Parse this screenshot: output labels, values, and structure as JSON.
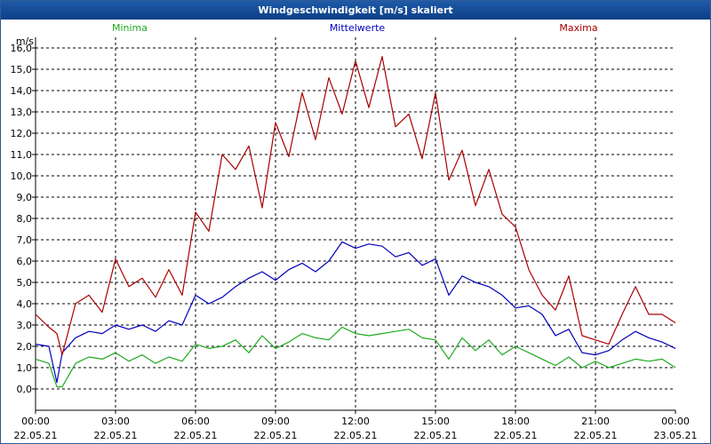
{
  "window": {
    "title": "Windgeschwindigkeit [m/s] skaliert"
  },
  "colors": {
    "minima": "#1faa1f",
    "mittelwerte": "#0000bb",
    "maxima": "#aa0000",
    "grid": "#000000",
    "axis": "#000000"
  },
  "chart_data": {
    "type": "line",
    "title": "Windgeschwindigkeit [m/s] skaliert",
    "ylabel": "m/s",
    "xlabel": "",
    "ylim": [
      -1.0,
      16.5
    ],
    "xlim": [
      0,
      24
    ],
    "grid": true,
    "y_ticks": [
      "0,0",
      "1,0",
      "2,0",
      "3,0",
      "4,0",
      "5,0",
      "6,0",
      "7,0",
      "8,0",
      "9,0",
      "10,0",
      "11,0",
      "12,0",
      "13,0",
      "14,0",
      "15,0",
      "16,0"
    ],
    "x_ticks": [
      {
        "time": "00:00",
        "date": "22.05.21",
        "hour": 0
      },
      {
        "time": "03:00",
        "date": "22.05.21",
        "hour": 3
      },
      {
        "time": "06:00",
        "date": "22.05.21",
        "hour": 6
      },
      {
        "time": "09:00",
        "date": "22.05.21",
        "hour": 9
      },
      {
        "time": "12:00",
        "date": "22.05.21",
        "hour": 12
      },
      {
        "time": "15:00",
        "date": "22.05.21",
        "hour": 15
      },
      {
        "time": "18:00",
        "date": "22.05.21",
        "hour": 18
      },
      {
        "time": "21:00",
        "date": "22.05.21",
        "hour": 21
      },
      {
        "time": "00:00",
        "date": "23.05.21",
        "hour": 24
      }
    ],
    "series": [
      {
        "name": "Minima",
        "x": [
          0,
          0.5,
          0.8,
          1,
          1.5,
          2,
          2.5,
          3,
          3.5,
          4,
          4.5,
          5,
          5.5,
          6,
          6.5,
          7,
          7.5,
          8,
          8.5,
          9,
          9.5,
          10,
          10.5,
          11,
          11.5,
          12,
          12.5,
          13,
          13.5,
          14,
          14.5,
          15,
          15.5,
          16,
          16.5,
          17,
          17.5,
          18,
          18.5,
          19,
          19.5,
          20,
          20.5,
          21,
          21.5,
          22,
          22.5,
          23,
          23.5,
          24
        ],
        "values": [
          1.4,
          1.2,
          0.1,
          0.1,
          1.2,
          1.5,
          1.4,
          1.7,
          1.3,
          1.6,
          1.2,
          1.5,
          1.3,
          2.1,
          1.9,
          2.0,
          2.3,
          1.7,
          2.5,
          1.9,
          2.2,
          2.6,
          2.4,
          2.3,
          2.9,
          2.6,
          2.5,
          2.6,
          2.7,
          2.8,
          2.4,
          2.3,
          1.4,
          2.4,
          1.8,
          2.3,
          1.6,
          2.0,
          1.7,
          1.4,
          1.1,
          1.5,
          1.0,
          1.3,
          1.0,
          1.2,
          1.4,
          1.3,
          1.4,
          1.0
        ]
      },
      {
        "name": "Mittelwerte",
        "x": [
          0,
          0.5,
          0.8,
          1,
          1.5,
          2,
          2.5,
          3,
          3.5,
          4,
          4.5,
          5,
          5.5,
          6,
          6.5,
          7,
          7.5,
          8,
          8.5,
          9,
          9.5,
          10,
          10.5,
          11,
          11.5,
          12,
          12.5,
          13,
          13.5,
          14,
          14.5,
          15,
          15.5,
          16,
          16.5,
          17,
          17.5,
          18,
          18.5,
          19,
          19.5,
          20,
          20.5,
          21,
          21.5,
          22,
          22.5,
          23,
          23.5,
          24
        ],
        "values": [
          2.1,
          2.0,
          0.3,
          1.7,
          2.4,
          2.7,
          2.6,
          3.0,
          2.8,
          3.0,
          2.7,
          3.2,
          3.0,
          4.4,
          4.0,
          4.3,
          4.8,
          5.2,
          5.5,
          5.1,
          5.6,
          5.9,
          5.5,
          6.0,
          6.9,
          6.6,
          6.8,
          6.7,
          6.2,
          6.4,
          5.8,
          6.1,
          4.4,
          5.3,
          5.0,
          4.8,
          4.4,
          3.8,
          3.9,
          3.5,
          2.5,
          2.8,
          1.7,
          1.6,
          1.8,
          2.3,
          2.7,
          2.4,
          2.2,
          1.9
        ]
      },
      {
        "name": "Maxima",
        "x": [
          0,
          0.5,
          0.8,
          1,
          1.5,
          2,
          2.5,
          3,
          3.5,
          4,
          4.5,
          5,
          5.5,
          6,
          6.5,
          7,
          7.5,
          8,
          8.5,
          9,
          9.5,
          10,
          10.5,
          11,
          11.5,
          12,
          12.5,
          13,
          13.5,
          14,
          14.5,
          15,
          15.5,
          16,
          16.5,
          17,
          17.5,
          18,
          18.5,
          19,
          19.5,
          20,
          20.5,
          21,
          21.5,
          22,
          22.5,
          23,
          23.5,
          24
        ],
        "values": [
          3.5,
          2.9,
          2.6,
          1.6,
          4.0,
          4.4,
          3.6,
          6.1,
          4.8,
          5.2,
          4.3,
          5.6,
          4.4,
          8.3,
          7.4,
          11.0,
          10.3,
          11.4,
          8.5,
          12.5,
          10.9,
          13.9,
          11.7,
          14.6,
          12.9,
          15.4,
          13.2,
          15.6,
          12.3,
          12.9,
          10.8,
          13.9,
          9.8,
          11.2,
          8.6,
          10.3,
          8.2,
          7.6,
          5.6,
          4.4,
          3.7,
          5.3,
          2.5,
          2.3,
          2.1,
          3.5,
          4.8,
          3.5,
          3.5,
          3.1
        ]
      }
    ]
  }
}
